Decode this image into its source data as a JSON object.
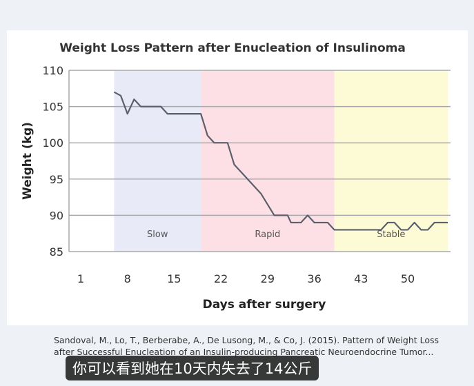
{
  "chart_data": {
    "type": "line",
    "title": "Weight Loss Pattern after Enucleation of Insulinoma",
    "xlabel": "Days after surgery",
    "ylabel": "Weight (kg)",
    "xlim": [
      1,
      57
    ],
    "ylim": [
      85,
      110
    ],
    "xticks": [
      1,
      8,
      15,
      22,
      29,
      36,
      43,
      50
    ],
    "yticks": [
      85,
      90,
      95,
      100,
      105,
      110
    ],
    "grid": "horizontal",
    "regions": [
      {
        "label": "Slow",
        "from": 6,
        "to": 19,
        "color": "#e8eaf8"
      },
      {
        "label": "Rapid",
        "from": 19,
        "to": 39,
        "color": "#fde0e6"
      },
      {
        "label": "Stable",
        "from": 39,
        "to": 56,
        "color": "#fdfbd6"
      }
    ],
    "line_color": "#5a5f6b",
    "x": [
      6,
      7,
      8,
      9,
      10,
      13,
      14,
      19,
      20,
      21,
      23,
      24,
      28,
      30,
      32,
      32.5,
      34,
      35,
      36,
      38,
      39,
      46,
      47,
      48,
      49,
      50,
      51,
      52,
      53,
      54,
      56
    ],
    "y": [
      107,
      106.5,
      104,
      106,
      105,
      105,
      104,
      104,
      101,
      100,
      100,
      97,
      93,
      90,
      90,
      89,
      89,
      90,
      89,
      89,
      88,
      88,
      89,
      89,
      88,
      88,
      89,
      88,
      88,
      89,
      89
    ]
  },
  "citation": "Sandoval, M., Lo, T., Berberabe, A., De Lusong, M., & Co, J. (2015). Pattern of Weight Loss after Successful Enucleation of an Insulin-producing Pancreatic Neuroendocrine Tumor...",
  "subtitle": "你可以看到她在10天内失去了14公斤"
}
